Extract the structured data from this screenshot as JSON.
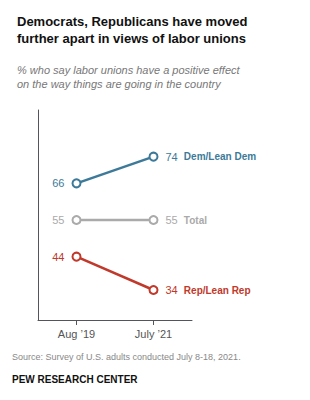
{
  "chart_data": {
    "type": "line",
    "title": "Democrats, Republicans have moved\nfurther apart in views of labor unions",
    "subtitle": "% who say labor unions have a positive effect\non the way things are going in the country",
    "categories": [
      "Aug ’19",
      "July ’21"
    ],
    "series": [
      {
        "name": "Dem/Lean Dem",
        "color": "#3d7a99",
        "values": [
          66,
          74
        ]
      },
      {
        "name": "Total",
        "color": "#aaaaaa",
        "values": [
          55,
          55
        ]
      },
      {
        "name": "Rep/Lean Rep",
        "color": "#c0392b",
        "values": [
          44,
          34
        ]
      }
    ],
    "ylim": [
      25,
      88
    ],
    "tick_labels": "x",
    "grid": false,
    "data_labels": true,
    "marker": "circle",
    "annotations": [
      "Source: Survey of U.S. adults conducted July 8-18, 2021.",
      "PEW RESEARCH CENTER"
    ]
  }
}
